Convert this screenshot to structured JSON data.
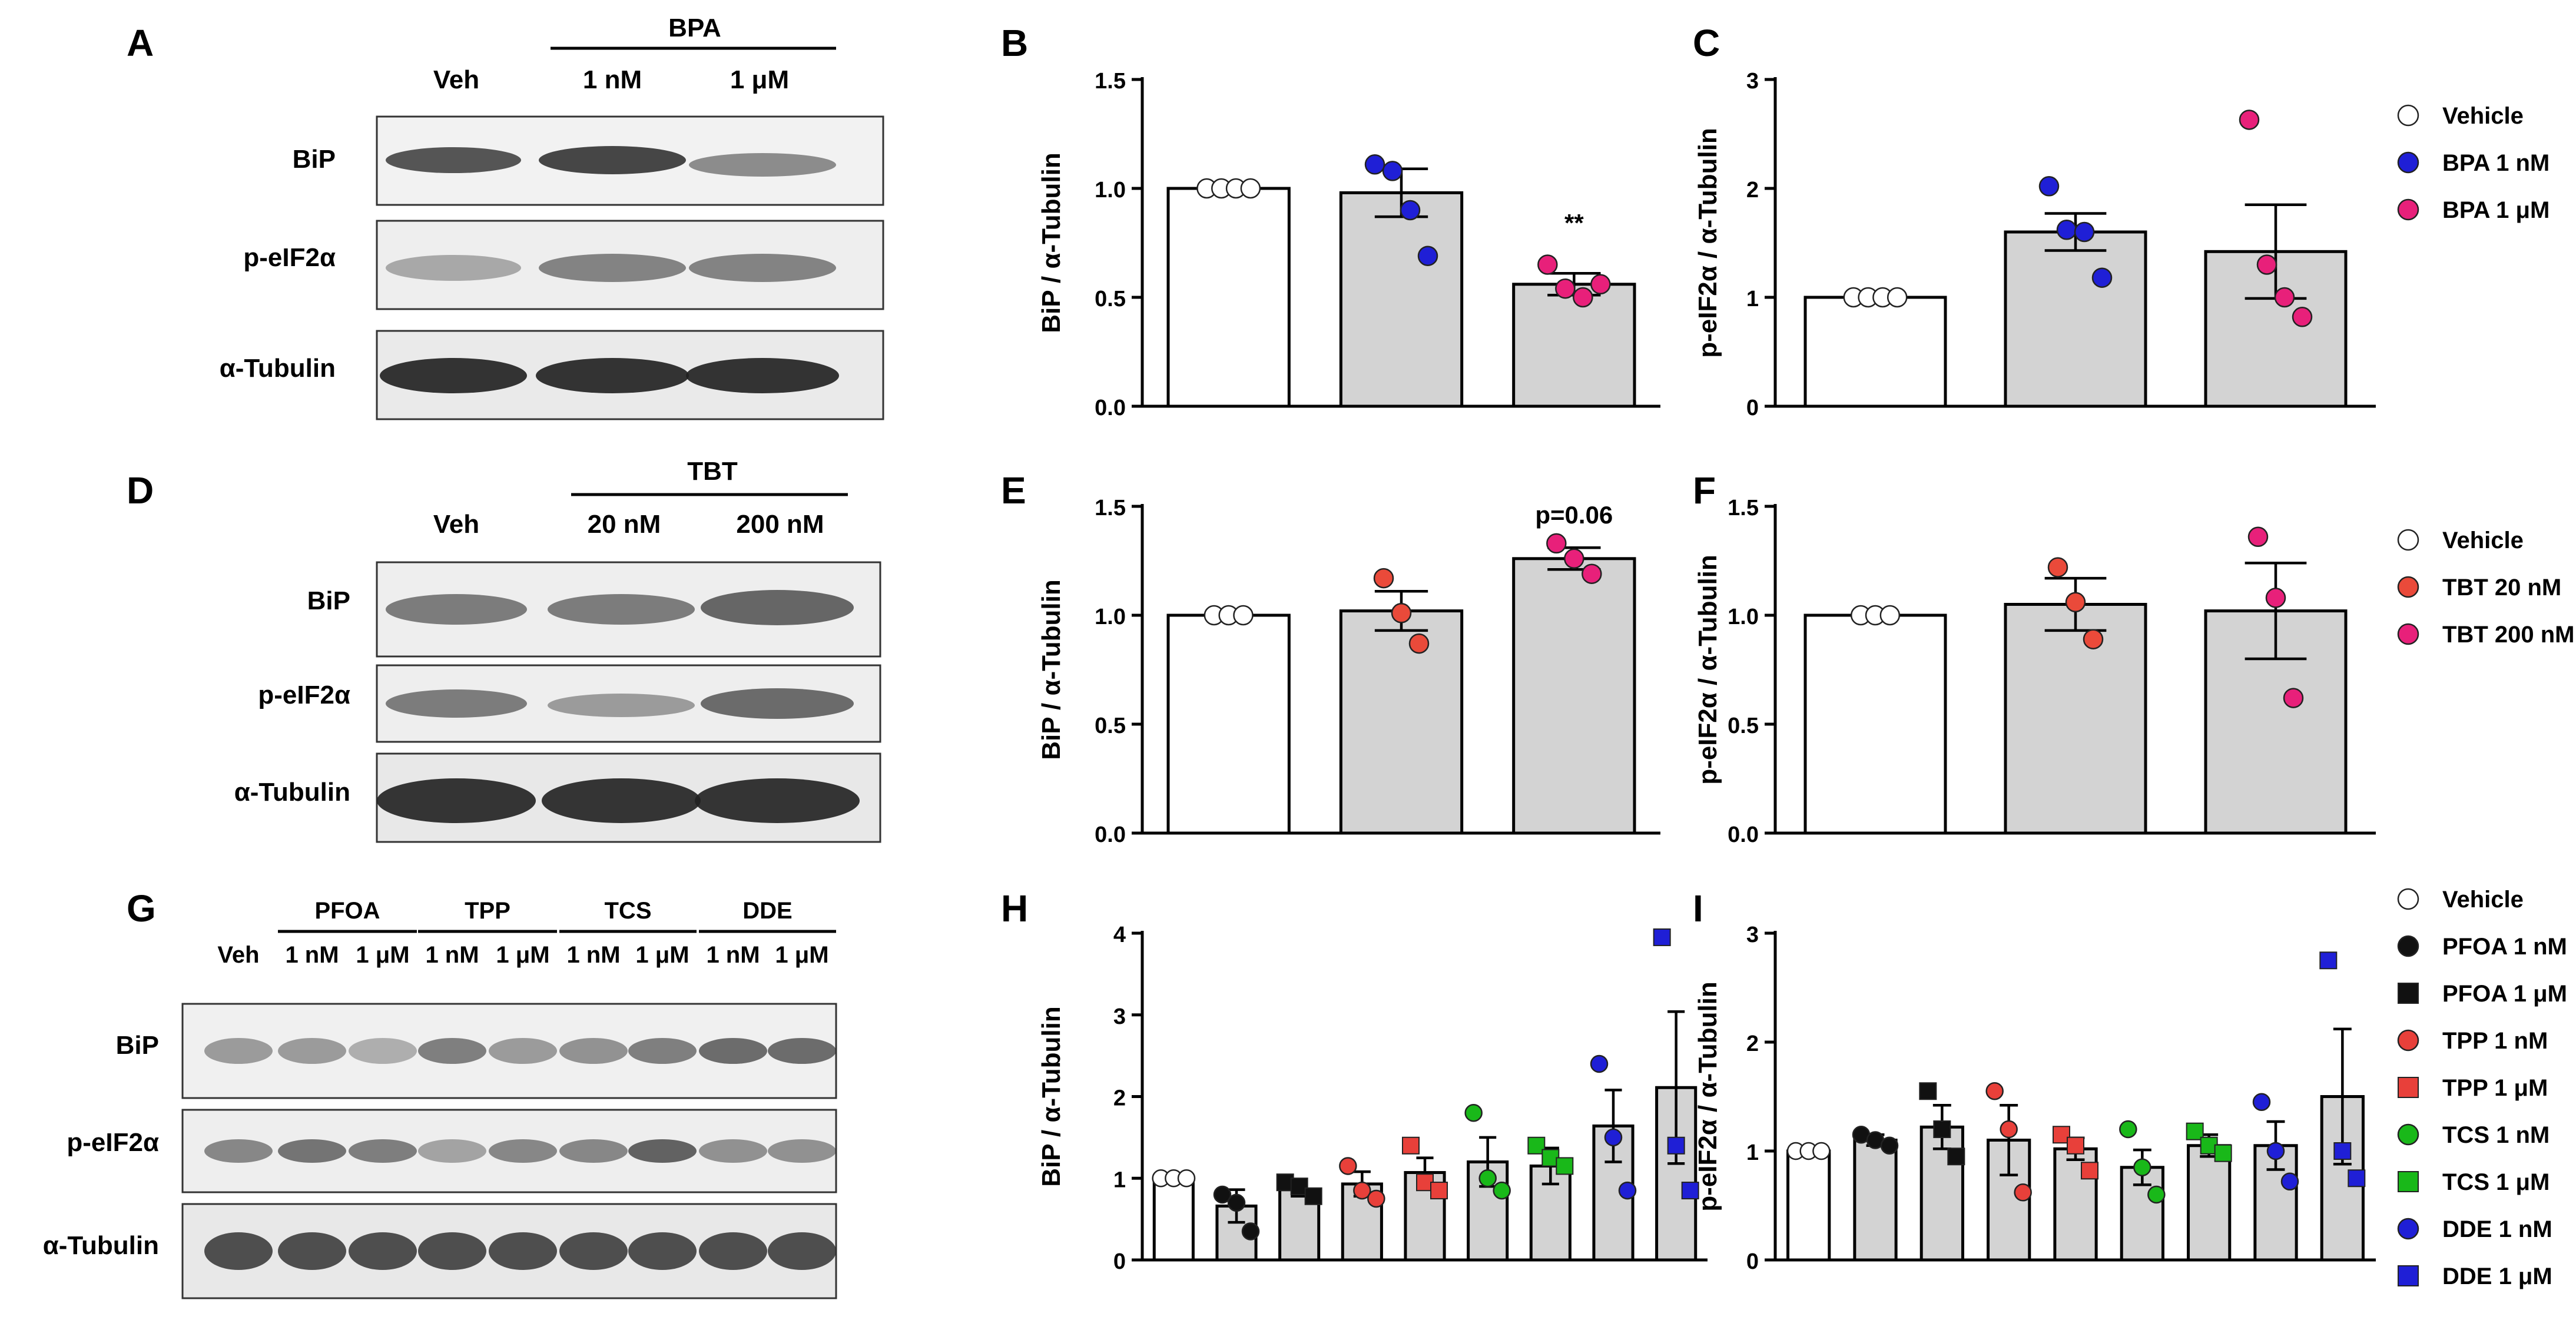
{
  "colors": {
    "vehicle": "#ffffff",
    "bpa_1nM": "#1f1fd6",
    "bpa_1uM": "#e8207a",
    "tbt_20nM": "#ea4a3a",
    "tbt_200nM": "#e8207a",
    "pfoa": "#111111",
    "tpp": "#e8403a",
    "tcs": "#19b819",
    "dde": "#1f1fd6",
    "bar_control": "#ffffff",
    "bar_treated": "#d3d3d3"
  },
  "panels": {
    "A": {
      "letter": "A",
      "group_labels": [
        {
          "text": "BPA",
          "start": 1,
          "end": 2
        }
      ],
      "lane_labels": [
        "Veh",
        "1 nM",
        "1 μM"
      ],
      "row_labels": [
        "BiP",
        "p-eIF2α",
        "α-Tubulin"
      ]
    },
    "D": {
      "letter": "D",
      "group_labels": [
        {
          "text": "TBT",
          "start": 1,
          "end": 2
        }
      ],
      "lane_labels": [
        "Veh",
        "20 nM",
        "200 nM"
      ],
      "row_labels": [
        "BiP",
        "p-eIF2α",
        "α-Tubulin"
      ]
    },
    "G": {
      "letter": "G",
      "group_labels": [
        {
          "text": "PFOA",
          "start": 1,
          "end": 2
        },
        {
          "text": "TPP",
          "start": 3,
          "end": 4
        },
        {
          "text": "TCS",
          "start": 5,
          "end": 6
        },
        {
          "text": "DDE",
          "start": 7,
          "end": 8
        }
      ],
      "lane_labels": [
        "Veh",
        "1 nM",
        "1 μM",
        "1 nM",
        "1 μM",
        "1 nM",
        "1 μM",
        "1 nM",
        "1 μM"
      ],
      "row_labels": [
        "BiP",
        "p-eIF2α",
        "α-Tubulin"
      ]
    }
  },
  "legends": {
    "top": [
      {
        "label": "Vehicle",
        "color_key": "vehicle",
        "marker": "circle"
      },
      {
        "label": "BPA 1 nM",
        "color_key": "bpa_1nM",
        "marker": "circle"
      },
      {
        "label": "BPA 1 μM",
        "color_key": "bpa_1uM",
        "marker": "circle"
      }
    ],
    "middle": [
      {
        "label": "Vehicle",
        "color_key": "vehicle",
        "marker": "circle"
      },
      {
        "label": "TBT 20 nM",
        "color_key": "tbt_20nM",
        "marker": "circle"
      },
      {
        "label": "TBT 200 nM",
        "color_key": "tbt_200nM",
        "marker": "circle"
      }
    ],
    "bottom": [
      {
        "label": "Vehicle",
        "color_key": "vehicle",
        "marker": "circle"
      },
      {
        "label": "PFOA 1 nM",
        "color_key": "pfoa",
        "marker": "circle"
      },
      {
        "label": "PFOA 1 μM",
        "color_key": "pfoa",
        "marker": "square"
      },
      {
        "label": "TPP 1 nM",
        "color_key": "tpp",
        "marker": "circle"
      },
      {
        "label": "TPP 1 μM",
        "color_key": "tpp",
        "marker": "square"
      },
      {
        "label": "TCS 1 nM",
        "color_key": "tcs",
        "marker": "circle"
      },
      {
        "label": "TCS 1 μM",
        "color_key": "tcs",
        "marker": "square"
      },
      {
        "label": "DDE 1 nM",
        "color_key": "dde",
        "marker": "circle"
      },
      {
        "label": "DDE 1 μM",
        "color_key": "dde",
        "marker": "square"
      }
    ]
  },
  "chart_data": [
    {
      "id": "B",
      "letter": "B",
      "type": "bar",
      "title": "",
      "xlabel": "",
      "ylabel": "BiP / α-Tubulin",
      "ylim": [
        0,
        1.5
      ],
      "yticks": [
        0.0,
        0.5,
        1.0,
        1.5
      ],
      "tick_decimals": 1,
      "categories": [
        "Vehicle",
        "BPA 1 nM",
        "BPA 1 μM"
      ],
      "values": [
        1.0,
        0.98,
        0.56
      ],
      "sem": [
        0.0,
        0.11,
        0.05
      ],
      "points": [
        [
          1.0,
          1.0,
          1.0,
          1.0
        ],
        [
          1.11,
          1.08,
          0.9,
          0.69
        ],
        [
          0.65,
          0.54,
          0.5,
          0.56
        ]
      ],
      "color_keys": [
        "vehicle",
        "bpa_1nM",
        "bpa_1uM"
      ],
      "markers": [
        "circle",
        "circle",
        "circle"
      ],
      "annotations": [
        {
          "category": 2,
          "text": "**",
          "y": 0.84
        }
      ]
    },
    {
      "id": "C",
      "letter": "C",
      "type": "bar",
      "title": "",
      "xlabel": "",
      "ylabel": "p-eIF2α / α-Tubulin",
      "ylim": [
        0,
        3
      ],
      "yticks": [
        0,
        1,
        2,
        3
      ],
      "tick_decimals": 0,
      "categories": [
        "Vehicle",
        "BPA 1 nM",
        "BPA 1 μM"
      ],
      "values": [
        1.0,
        1.6,
        1.42
      ],
      "sem": [
        0.0,
        0.17,
        0.43
      ],
      "points": [
        [
          1.0,
          1.0,
          1.0,
          1.0
        ],
        [
          2.02,
          1.62,
          1.6,
          1.18
        ],
        [
          2.63,
          1.3,
          1.0,
          0.82
        ]
      ],
      "color_keys": [
        "vehicle",
        "bpa_1nM",
        "bpa_1uM"
      ],
      "markers": [
        "circle",
        "circle",
        "circle"
      ],
      "annotations": []
    },
    {
      "id": "E",
      "letter": "E",
      "type": "bar",
      "title": "",
      "xlabel": "",
      "ylabel": "BiP / α-Tubulin",
      "ylim": [
        0,
        1.5
      ],
      "yticks": [
        0.0,
        0.5,
        1.0,
        1.5
      ],
      "tick_decimals": 1,
      "categories": [
        "Vehicle",
        "TBT 20 nM",
        "TBT 200 nM"
      ],
      "values": [
        1.0,
        1.02,
        1.26
      ],
      "sem": [
        0.0,
        0.09,
        0.05
      ],
      "points": [
        [
          1.0,
          1.0,
          1.0
        ],
        [
          1.17,
          1.01,
          0.87
        ],
        [
          1.33,
          1.26,
          1.19
        ]
      ],
      "color_keys": [
        "vehicle",
        "tbt_20nM",
        "tbt_200nM"
      ],
      "markers": [
        "circle",
        "circle",
        "circle"
      ],
      "annotations": [
        {
          "category": 2,
          "text": "p=0.06",
          "y": 1.46
        }
      ]
    },
    {
      "id": "F",
      "letter": "F",
      "type": "bar",
      "title": "",
      "xlabel": "",
      "ylabel": "p-eIF2α / α-Tubulin",
      "ylim": [
        0,
        1.5
      ],
      "yticks": [
        0.0,
        0.5,
        1.0,
        1.5
      ],
      "tick_decimals": 1,
      "categories": [
        "Vehicle",
        "TBT 20 nM",
        "TBT 200 nM"
      ],
      "values": [
        1.0,
        1.05,
        1.02
      ],
      "sem": [
        0.0,
        0.12,
        0.22
      ],
      "points": [
        [
          1.0,
          1.0,
          1.0
        ],
        [
          1.22,
          1.06,
          0.89
        ],
        [
          1.36,
          1.08,
          0.62
        ]
      ],
      "color_keys": [
        "vehicle",
        "tbt_20nM",
        "tbt_200nM"
      ],
      "markers": [
        "circle",
        "circle",
        "circle"
      ],
      "annotations": []
    },
    {
      "id": "H",
      "letter": "H",
      "type": "bar",
      "title": "",
      "xlabel": "",
      "ylabel": "BiP / α-Tubulin",
      "ylim": [
        0,
        4
      ],
      "yticks": [
        0,
        1,
        2,
        3,
        4
      ],
      "tick_decimals": 0,
      "categories": [
        "Vehicle",
        "PFOA 1 nM",
        "PFOA 1 μM",
        "TPP 1 nM",
        "TPP 1 μM",
        "TCS 1 nM",
        "TCS 1 μM",
        "DDE 1 nM",
        "DDE 1 μM"
      ],
      "values": [
        1.0,
        0.66,
        0.86,
        0.93,
        1.07,
        1.2,
        1.15,
        1.64,
        2.11
      ],
      "sem": [
        0.0,
        0.2,
        0.08,
        0.15,
        0.18,
        0.3,
        0.22,
        0.44,
        0.93
      ],
      "points": [
        [
          1.0,
          1.0,
          1.0
        ],
        [
          0.8,
          0.7,
          0.35
        ],
        [
          0.95,
          0.9,
          0.78
        ],
        [
          1.15,
          0.85,
          0.75
        ],
        [
          1.4,
          0.95,
          0.85
        ],
        [
          1.8,
          1.0,
          0.85
        ],
        [
          1.4,
          1.25,
          1.15
        ],
        [
          2.4,
          1.5,
          0.85
        ],
        [
          3.95,
          1.4,
          0.85
        ]
      ],
      "color_keys": [
        "vehicle",
        "pfoa",
        "pfoa",
        "tpp",
        "tpp",
        "tcs",
        "tcs",
        "dde",
        "dde"
      ],
      "markers": [
        "circle",
        "circle",
        "square",
        "circle",
        "square",
        "circle",
        "square",
        "circle",
        "square"
      ],
      "annotations": []
    },
    {
      "id": "I",
      "letter": "I",
      "type": "bar",
      "title": "",
      "xlabel": "",
      "ylabel": "p-eIF2α / α-Tubulin",
      "ylim": [
        0,
        3
      ],
      "yticks": [
        0,
        1,
        2,
        3
      ],
      "tick_decimals": 0,
      "categories": [
        "Vehicle",
        "PFOA 1 nM",
        "PFOA 1 μM",
        "TPP 1 nM",
        "TPP 1 μM",
        "TCS 1 nM",
        "TCS 1 μM",
        "DDE 1 nM",
        "DDE 1 μM"
      ],
      "values": [
        1.0,
        1.1,
        1.22,
        1.1,
        1.02,
        0.85,
        1.05,
        1.05,
        1.5
      ],
      "sem": [
        0.0,
        0.05,
        0.2,
        0.32,
        0.1,
        0.16,
        0.1,
        0.22,
        0.62
      ],
      "points": [
        [
          1.0,
          1.0,
          1.0
        ],
        [
          1.15,
          1.1,
          1.05
        ],
        [
          1.55,
          1.2,
          0.95
        ],
        [
          1.55,
          1.2,
          0.62
        ],
        [
          1.15,
          1.05,
          0.82
        ],
        [
          1.2,
          0.85,
          0.6
        ],
        [
          1.18,
          1.05,
          0.98
        ],
        [
          1.45,
          1.0,
          0.72
        ],
        [
          2.75,
          1.0,
          0.75
        ]
      ],
      "color_keys": [
        "vehicle",
        "pfoa",
        "pfoa",
        "tpp",
        "tpp",
        "tcs",
        "tcs",
        "dde",
        "dde"
      ],
      "markers": [
        "circle",
        "circle",
        "square",
        "circle",
        "square",
        "circle",
        "square",
        "circle",
        "square"
      ],
      "annotations": []
    }
  ]
}
